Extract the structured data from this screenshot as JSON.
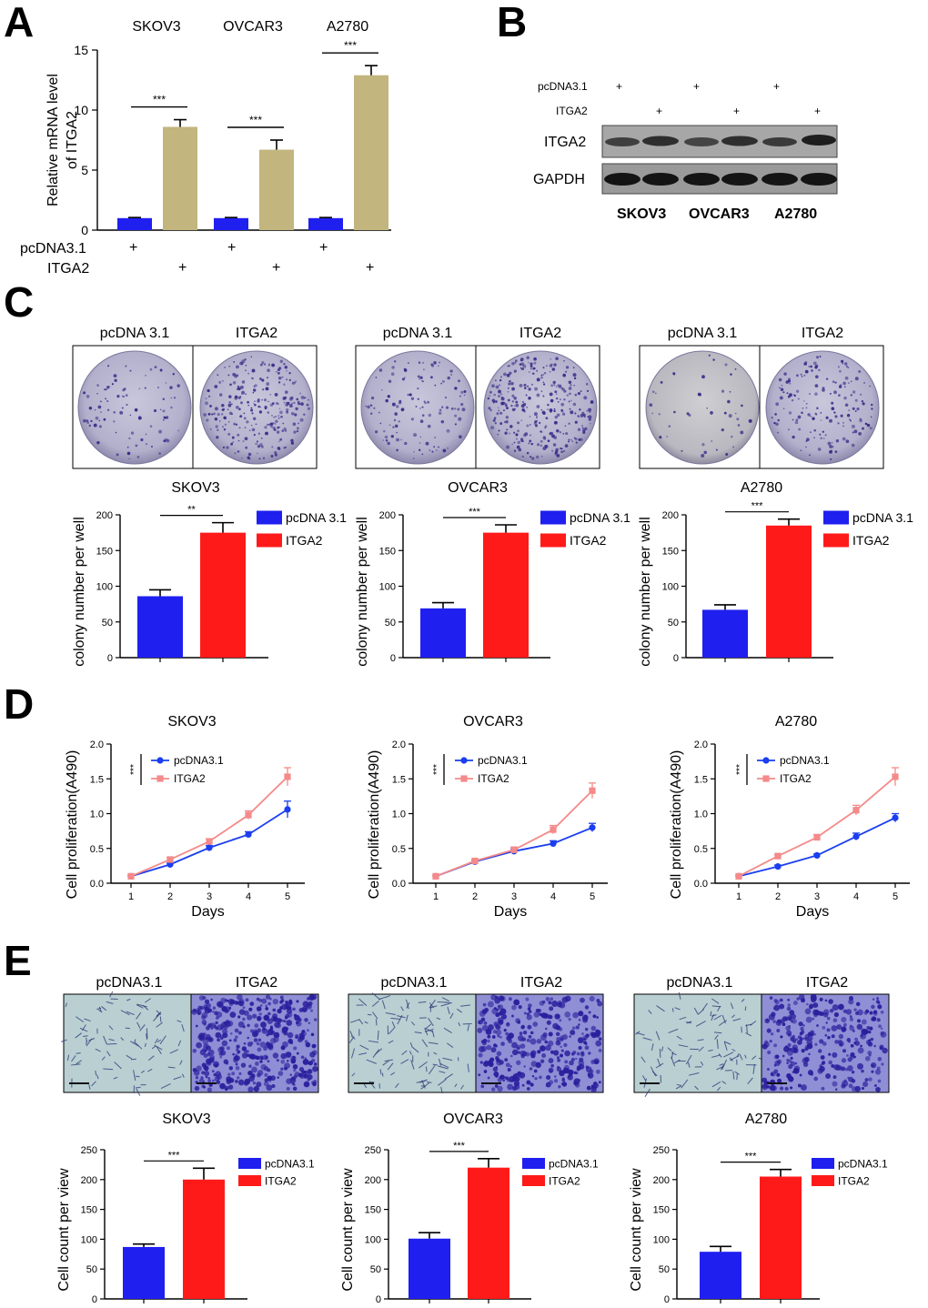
{
  "figure": {
    "panel_letters": [
      "A",
      "B",
      "C",
      "D",
      "E"
    ],
    "cell_lines": [
      "SKOV3",
      "OVCAR3",
      "A2780"
    ]
  },
  "colors": {
    "blue": "#1f1ff0",
    "tan": "#c2b57e",
    "red": "#ff1a1a",
    "pink": "#f48a8a",
    "line_blue": "#1a3ef0"
  },
  "panel_a": {
    "row_labels": [
      "pcDNA3.1",
      "ITGA2"
    ],
    "plus": "+"
  },
  "panel_b": {
    "row_labels": [
      "pcDNA3.1",
      "ITGA2"
    ],
    "plus": "+",
    "blot_labels": [
      "ITGA2",
      "GAPDH"
    ],
    "lane_groups": [
      "SKOV3",
      "OVCAR3",
      "A2780"
    ]
  },
  "panel_c": {
    "dish_labels": [
      "pcDNA 3.1",
      "ITGA2"
    ]
  },
  "panel_e": {
    "image_labels": [
      "pcDNA3.1",
      "ITGA2"
    ]
  },
  "chart_data": [
    {
      "id": "A",
      "type": "bar",
      "title": "",
      "groups": [
        "SKOV3",
        "OVCAR3",
        "A2780"
      ],
      "series": [
        {
          "name": "pcDNA3.1",
          "values": [
            1.0,
            1.0,
            1.0
          ],
          "errors": [
            0.05,
            0.05,
            0.05
          ]
        },
        {
          "name": "ITGA2",
          "values": [
            8.6,
            6.7,
            12.9
          ],
          "errors": [
            0.6,
            0.8,
            0.8
          ]
        }
      ],
      "significance": [
        "***",
        "***",
        "***"
      ],
      "ylabel": "Relative mRNA level of ITGA2",
      "ylim": [
        0,
        15
      ],
      "yticks": [
        0,
        5,
        10,
        15
      ]
    },
    {
      "id": "C1",
      "type": "bar",
      "title": "SKOV3",
      "categories": [
        "pcDNA 3.1",
        "ITGA2"
      ],
      "values": [
        86,
        175
      ],
      "errors": [
        9,
        14
      ],
      "significance": "**",
      "ylabel": "colony number per well",
      "ylim": [
        0,
        200
      ],
      "yticks": [
        0,
        50,
        100,
        150,
        200
      ],
      "legend": [
        "pcDNA 3.1",
        "ITGA2"
      ]
    },
    {
      "id": "C2",
      "type": "bar",
      "title": "OVCAR3",
      "categories": [
        "pcDNA 3.1",
        "ITGA2"
      ],
      "values": [
        69,
        175
      ],
      "errors": [
        8,
        11
      ],
      "significance": "***",
      "ylabel": "colony number per well",
      "ylim": [
        0,
        200
      ],
      "yticks": [
        0,
        50,
        100,
        150,
        200
      ],
      "legend": [
        "pcDNA 3.1",
        "ITGA2"
      ]
    },
    {
      "id": "C3",
      "type": "bar",
      "title": "A2780",
      "categories": [
        "pcDNA 3.1",
        "ITGA2"
      ],
      "values": [
        67,
        185
      ],
      "errors": [
        7,
        9
      ],
      "significance": "***",
      "ylabel": "colony number per well",
      "ylim": [
        0,
        200
      ],
      "yticks": [
        0,
        50,
        100,
        150,
        200
      ],
      "legend": [
        "pcDNA 3.1",
        "ITGA2"
      ]
    },
    {
      "id": "D1",
      "type": "line",
      "title": "SKOV3",
      "x": [
        1,
        2,
        3,
        4,
        5
      ],
      "series": [
        {
          "name": "pcDNA3.1",
          "values": [
            0.1,
            0.27,
            0.51,
            0.7,
            1.06
          ],
          "errors": [
            0.01,
            0.02,
            0.03,
            0.04,
            0.12
          ]
        },
        {
          "name": "ITGA2",
          "values": [
            0.1,
            0.34,
            0.6,
            0.98,
            1.53
          ],
          "errors": [
            0.01,
            0.03,
            0.04,
            0.06,
            0.13
          ]
        }
      ],
      "significance": "***",
      "xlabel": "Days",
      "ylabel": "Cell proliferation(A490)",
      "ylim": [
        0,
        2.0
      ],
      "yticks": [
        "0.0",
        "0.5",
        "1.0",
        "1.5",
        "2.0"
      ]
    },
    {
      "id": "D2",
      "type": "line",
      "title": "OVCAR3",
      "x": [
        1,
        2,
        3,
        4,
        5
      ],
      "series": [
        {
          "name": "pcDNA3.1",
          "values": [
            0.1,
            0.31,
            0.46,
            0.57,
            0.8
          ],
          "errors": [
            0.01,
            0.02,
            0.03,
            0.04,
            0.06
          ]
        },
        {
          "name": "ITGA2",
          "values": [
            0.1,
            0.32,
            0.48,
            0.77,
            1.33
          ],
          "errors": [
            0.01,
            0.02,
            0.04,
            0.06,
            0.11
          ]
        }
      ],
      "significance": "***",
      "xlabel": "Days",
      "ylabel": "Cell proliferation(A490)",
      "ylim": [
        0,
        2.0
      ],
      "yticks": [
        "0.0",
        "0.5",
        "1.0",
        "1.5",
        "2.0"
      ]
    },
    {
      "id": "D3",
      "type": "line",
      "title": "A2780",
      "x": [
        1,
        2,
        3,
        4,
        5
      ],
      "series": [
        {
          "name": "pcDNA3.1",
          "values": [
            0.1,
            0.24,
            0.4,
            0.67,
            0.94
          ],
          "errors": [
            0.01,
            0.02,
            0.02,
            0.05,
            0.06
          ]
        },
        {
          "name": "ITGA2",
          "values": [
            0.1,
            0.39,
            0.66,
            1.05,
            1.53
          ],
          "errors": [
            0.01,
            0.02,
            0.04,
            0.07,
            0.13
          ]
        }
      ],
      "significance": "***",
      "xlabel": "Days",
      "ylabel": "Cell proliferation(A490)",
      "ylim": [
        0,
        2.0
      ],
      "yticks": [
        "0.0",
        "0.5",
        "1.0",
        "1.5",
        "2.0"
      ]
    },
    {
      "id": "E1",
      "type": "bar",
      "title": "SKOV3",
      "categories": [
        "pcDNA3.1",
        "ITGA2"
      ],
      "values": [
        87,
        200
      ],
      "errors": [
        5,
        19
      ],
      "significance": "***",
      "ylabel": "Cell count per view",
      "ylim": [
        0,
        250
      ],
      "yticks": [
        0,
        50,
        100,
        150,
        200,
        250
      ],
      "legend": [
        "pcDNA3.1",
        "ITGA2"
      ]
    },
    {
      "id": "E2",
      "type": "bar",
      "title": "OVCAR3",
      "categories": [
        "pcDNA3.1",
        "ITGA2"
      ],
      "values": [
        101,
        220
      ],
      "errors": [
        10,
        15
      ],
      "significance": "***",
      "ylabel": "Cell count per view",
      "ylim": [
        0,
        250
      ],
      "yticks": [
        0,
        50,
        100,
        150,
        200,
        250
      ],
      "legend": [
        "pcDNA3.1",
        "ITGA2"
      ]
    },
    {
      "id": "E3",
      "type": "bar",
      "title": "A2780",
      "categories": [
        "pcDNA3.1",
        "ITGA2"
      ],
      "values": [
        79,
        205
      ],
      "errors": [
        9,
        12
      ],
      "significance": "***",
      "ylabel": "Cell count per view",
      "ylim": [
        0,
        250
      ],
      "yticks": [
        0,
        50,
        100,
        150,
        200,
        250
      ],
      "legend": [
        "pcDNA3.1",
        "ITGA2"
      ]
    }
  ]
}
